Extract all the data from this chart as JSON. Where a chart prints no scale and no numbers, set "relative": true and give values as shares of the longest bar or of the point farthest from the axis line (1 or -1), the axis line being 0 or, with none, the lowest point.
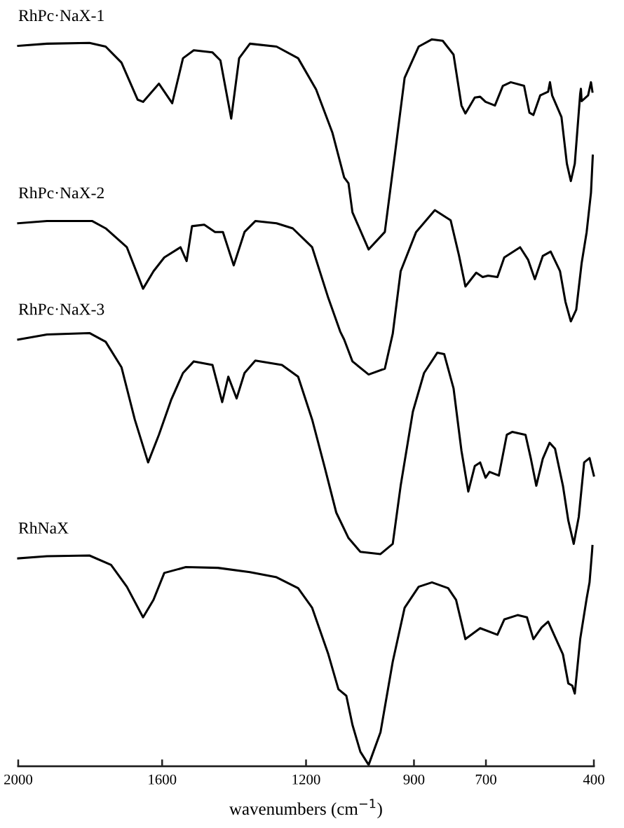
{
  "chart_data": {
    "type": "line",
    "relative": true,
    "xlabel": "wavenumbers (cm$^{−1}$)",
    "xlim": [
      2000,
      400
    ],
    "xticks": [
      2000,
      1600,
      1200,
      900,
      700,
      400
    ],
    "tick_labels": "x",
    "grid": false,
    "legend": false,
    "marker": "none",
    "line_style": "solid",
    "series": [
      {
        "name": "RhPc·NaX-1",
        "color": "#000000",
        "x": [
          2000,
          1920,
          1802,
          1757,
          1713,
          1668,
          1653,
          1609,
          1572,
          1542,
          1512,
          1460,
          1438,
          1408,
          1386,
          1356,
          1282,
          1222,
          1172,
          1127,
          1094,
          1082,
          1071,
          1026,
          981,
          953,
          926,
          887,
          850,
          820,
          790,
          768,
          757,
          731,
          716,
          701,
          675,
          653,
          631,
          594,
          579,
          568,
          549,
          527,
          522,
          516,
          490,
          475,
          464,
          453,
          438,
          436,
          434,
          416,
          408,
          404
        ],
        "values": [
          0.991,
          0.994,
          0.995,
          0.99,
          0.968,
          0.917,
          0.914,
          0.939,
          0.912,
          0.974,
          0.985,
          0.982,
          0.971,
          0.891,
          0.974,
          0.994,
          0.99,
          0.974,
          0.931,
          0.872,
          0.81,
          0.802,
          0.762,
          0.711,
          0.735,
          0.842,
          0.947,
          0.99,
          1.0,
          0.998,
          0.979,
          0.909,
          0.898,
          0.92,
          0.921,
          0.914,
          0.909,
          0.936,
          0.941,
          0.936,
          0.899,
          0.896,
          0.923,
          0.928,
          0.941,
          0.923,
          0.893,
          0.829,
          0.805,
          0.829,
          0.925,
          0.932,
          0.915,
          0.923,
          0.941,
          0.928
        ]
      },
      {
        "name": "RhPc·NaX-2",
        "color": "#000000",
        "x": [
          2000,
          1920,
          1794,
          1757,
          1698,
          1653,
          1624,
          1594,
          1549,
          1532,
          1517,
          1483,
          1453,
          1431,
          1401,
          1371,
          1341,
          1282,
          1237,
          1183,
          1138,
          1105,
          1094,
          1071,
          1026,
          981,
          959,
          937,
          894,
          842,
          798,
          775,
          757,
          727,
          709,
          694,
          668,
          649,
          605,
          583,
          564,
          542,
          520,
          494,
          479,
          464,
          449,
          434,
          420,
          408,
          403
        ],
        "values": [
          0.747,
          0.75,
          0.75,
          0.74,
          0.714,
          0.657,
          0.681,
          0.7,
          0.714,
          0.695,
          0.743,
          0.745,
          0.735,
          0.735,
          0.689,
          0.735,
          0.75,
          0.747,
          0.74,
          0.714,
          0.644,
          0.598,
          0.587,
          0.557,
          0.539,
          0.547,
          0.595,
          0.681,
          0.735,
          0.765,
          0.751,
          0.703,
          0.66,
          0.679,
          0.673,
          0.675,
          0.673,
          0.7,
          0.714,
          0.697,
          0.67,
          0.702,
          0.708,
          0.681,
          0.639,
          0.612,
          0.628,
          0.692,
          0.735,
          0.789,
          0.84
        ]
      },
      {
        "name": "RhPc·NaX-3",
        "color": "#000000",
        "x": [
          2000,
          1920,
          1802,
          1757,
          1713,
          1676,
          1639,
          1609,
          1575,
          1542,
          1512,
          1460,
          1433,
          1416,
          1393,
          1371,
          1341,
          1267,
          1222,
          1183,
          1149,
          1116,
          1082,
          1049,
          993,
          959,
          937,
          903,
          872,
          835,
          816,
          790,
          768,
          749,
          731,
          716,
          701,
          690,
          664,
          642,
          627,
          590,
          575,
          560,
          542,
          523,
          508,
          486,
          471,
          456,
          442,
          427,
          412,
          400
        ],
        "values": [
          0.587,
          0.594,
          0.596,
          0.584,
          0.549,
          0.477,
          0.418,
          0.456,
          0.504,
          0.541,
          0.557,
          0.552,
          0.501,
          0.536,
          0.506,
          0.541,
          0.558,
          0.552,
          0.536,
          0.477,
          0.413,
          0.349,
          0.314,
          0.295,
          0.292,
          0.306,
          0.386,
          0.488,
          0.541,
          0.569,
          0.567,
          0.52,
          0.434,
          0.378,
          0.413,
          0.418,
          0.397,
          0.405,
          0.4,
          0.456,
          0.46,
          0.456,
          0.423,
          0.386,
          0.423,
          0.445,
          0.437,
          0.386,
          0.338,
          0.306,
          0.343,
          0.418,
          0.424,
          0.4
        ]
      },
      {
        "name": "RhNaX",
        "color": "#000000",
        "x": [
          2000,
          1920,
          1802,
          1742,
          1698,
          1653,
          1624,
          1594,
          1534,
          1445,
          1356,
          1282,
          1222,
          1183,
          1138,
          1110,
          1088,
          1071,
          1049,
          1026,
          993,
          959,
          926,
          887,
          850,
          805,
          783,
          757,
          716,
          668,
          649,
          612,
          586,
          568,
          545,
          527,
          508,
          486,
          471,
          460,
          453,
          438,
          420,
          412,
          405,
          404
        ],
        "values": [
          0.286,
          0.289,
          0.29,
          0.277,
          0.247,
          0.205,
          0.229,
          0.266,
          0.274,
          0.273,
          0.267,
          0.26,
          0.245,
          0.218,
          0.154,
          0.106,
          0.097,
          0.057,
          0.02,
          0.002,
          0.047,
          0.144,
          0.218,
          0.247,
          0.253,
          0.245,
          0.229,
          0.175,
          0.19,
          0.181,
          0.202,
          0.208,
          0.205,
          0.175,
          0.191,
          0.199,
          0.178,
          0.154,
          0.114,
          0.111,
          0.1,
          0.175,
          0.231,
          0.253,
          0.296,
          0.303
        ]
      }
    ]
  }
}
